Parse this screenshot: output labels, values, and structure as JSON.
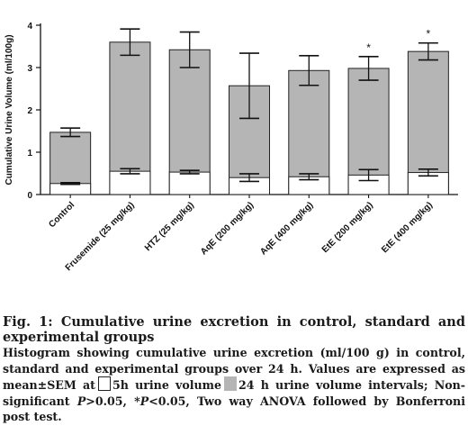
{
  "chart_data": {
    "type": "bar",
    "ylabel": "Cumulative Urine Volume (ml/100g)",
    "ylim": [
      0,
      4
    ],
    "yticks": [
      "0",
      "1",
      "2",
      "3",
      "4"
    ],
    "categories": [
      "Control",
      "Frusemide (25 mg/kg)",
      "HTZ (25 mg/kg)",
      "AqE (200 mg/kg)",
      "AqE (400 mg/kg)",
      "EtE (200 mg/kg)",
      "EtE (400 mg/kg)"
    ],
    "series": [
      {
        "name": "5h urine volume",
        "values": [
          0.26,
          0.55,
          0.53,
          0.4,
          0.42,
          0.46,
          0.52
        ],
        "sem": [
          0.02,
          0.06,
          0.04,
          0.09,
          0.07,
          0.13,
          0.08
        ]
      },
      {
        "name": "24 h urine volume",
        "values": [
          1.47,
          3.6,
          3.42,
          2.57,
          2.93,
          2.98,
          3.38
        ],
        "sem": [
          0.1,
          0.31,
          0.42,
          0.77,
          0.35,
          0.28,
          0.2
        ]
      }
    ],
    "annotations": [
      "",
      "",
      "",
      "",
      "",
      "*",
      "*"
    ],
    "colors": {
      "five_h": "#ffffff",
      "twentyfour_h": "#b5b5b5",
      "outline": "#222222"
    },
    "grid": false,
    "legend": "none"
  },
  "caption": {
    "title": "Fig. 1: Cumulative urine excretion in control, standard and experimental groups",
    "desc_part1": "Histogram showing cumulative urine excretion (ml/100 g) in control, standard and experimental groups over 24 h. Values are expressed as mean±SEM at",
    "legend_5h": "5h urine volume",
    "legend_24h": "24 h urine volume intervals; Non-significant",
    "p1_symbol": "P",
    "p1_rest": ">0.05, *",
    "p2_symbol": "P",
    "p2_rest": "<0.05, Two way ANOVA followed by Bonferroni post test."
  }
}
